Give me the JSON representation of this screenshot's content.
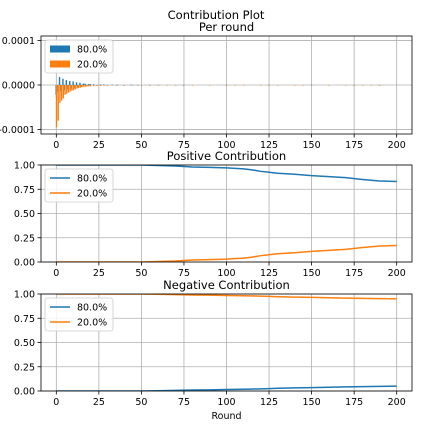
{
  "figure": {
    "suptitle": "Contribution Plot"
  },
  "colors": {
    "series1": "#1f77b4",
    "series2": "#ff7f0e",
    "grid": "#b0b0b0",
    "axes": "#000000"
  },
  "chart_data": [
    {
      "type": "bar",
      "title": "Per round",
      "xlabel": "",
      "ylabel": "",
      "xlim": [
        -9,
        209
      ],
      "ylim": [
        -0.00011,
        0.00011
      ],
      "xticks": [
        0,
        25,
        50,
        75,
        100,
        125,
        150,
        175,
        200
      ],
      "xtick_labels": [
        "0",
        "25",
        "50",
        "75",
        "100",
        "125",
        "150",
        "175",
        "200"
      ],
      "yticks": [
        -0.0001,
        0.0,
        0.0001
      ],
      "ytick_labels": [
        "-0.0001",
        "0.0000",
        "0.0001"
      ],
      "grid": true,
      "legend": "upper left",
      "series": [
        {
          "name": "80.0%",
          "color": "#1f77b4",
          "x": [
            0,
            1,
            2,
            3,
            4,
            5,
            6,
            7,
            8,
            9,
            10,
            11,
            12,
            13,
            14,
            15,
            16,
            17,
            18,
            19,
            20,
            22,
            24,
            26,
            28,
            30,
            33,
            36,
            40,
            44,
            48,
            55,
            60,
            75,
            100,
            125,
            150,
            175,
            190
          ],
          "values": [
            -2.2e-05,
            -1.6e-05,
            1.8e-05,
            -1.4e-05,
            1.4e-05,
            -1.2e-05,
            1.1e-05,
            -1e-05,
            9e-06,
            -8e-06,
            8e-06,
            -7e-06,
            6e-06,
            -5e-06,
            5e-06,
            -4e-06,
            3e-06,
            3e-06,
            -2e-06,
            2e-06,
            2e-06,
            1.5e-06,
            -1.2e-06,
            1e-06,
            1e-06,
            -8e-07,
            8e-07,
            6e-07,
            -5e-07,
            5e-07,
            4e-07,
            3e-07,
            3e-07,
            2e-07,
            2e-07,
            2e-07,
            2e-07,
            2e-07,
            2e-07
          ]
        },
        {
          "name": "20.0%",
          "color": "#ff7f0e",
          "x": [
            0,
            1,
            2,
            3,
            4,
            5,
            6,
            7,
            8,
            9,
            10,
            11,
            12,
            13,
            14,
            15,
            16,
            17,
            18,
            19,
            20,
            22,
            24,
            26,
            28,
            30,
            35,
            40,
            45,
            50,
            55,
            60,
            65,
            70,
            80,
            90,
            100,
            105,
            110,
            120,
            125,
            130,
            140,
            145,
            150,
            160,
            170,
            175,
            180,
            185,
            190
          ],
          "values": [
            -9.5e-05,
            -8e-05,
            -4e-05,
            -3.5e-05,
            -3e-05,
            -2.2e-05,
            -2e-05,
            -1.7e-05,
            -1.5e-05,
            -1.3e-05,
            -1.2e-05,
            -1e-05,
            -8e-06,
            -7e-06,
            -6e-06,
            -5e-06,
            -4e-06,
            -4e-06,
            -3e-06,
            -3e-06,
            -3e-06,
            -2.5e-06,
            -2e-06,
            -2e-06,
            -1.5e-06,
            -1.5e-06,
            -1.2e-06,
            -1e-06,
            -1e-06,
            -8e-07,
            -8e-07,
            -8e-07,
            -6e-07,
            -6e-07,
            -6e-07,
            -6e-07,
            -6e-07,
            -6e-07,
            -6e-07,
            -6e-07,
            -6e-07,
            -6e-07,
            -6e-07,
            -6e-07,
            -6e-07,
            -6e-07,
            -6e-07,
            -6e-07,
            -6e-07,
            -6e-07,
            -6e-07
          ]
        }
      ]
    },
    {
      "type": "line",
      "title": "Positive Contribution",
      "xlabel": "",
      "ylabel": "",
      "xlim": [
        -9,
        209
      ],
      "ylim": [
        0,
        1
      ],
      "xticks": [
        0,
        25,
        50,
        75,
        100,
        125,
        150,
        175,
        200
      ],
      "xtick_labels": [
        "0",
        "25",
        "50",
        "75",
        "100",
        "125",
        "150",
        "175",
        "200"
      ],
      "yticks": [
        0,
        0.25,
        0.5,
        0.75,
        1.0
      ],
      "ytick_labels": [
        "0.00",
        "0.25",
        "0.50",
        "0.75",
        "1.00"
      ],
      "grid": true,
      "legend": "upper left",
      "series": [
        {
          "name": "80.0%",
          "color": "#1f77b4",
          "x": [
            0,
            25,
            50,
            60,
            70,
            80,
            90,
            100,
            105,
            110,
            115,
            120,
            125,
            130,
            140,
            150,
            160,
            170,
            180,
            190,
            200
          ],
          "y": [
            1.0,
            1.0,
            1.0,
            0.995,
            0.99,
            0.98,
            0.975,
            0.97,
            0.965,
            0.96,
            0.95,
            0.935,
            0.925,
            0.915,
            0.905,
            0.89,
            0.88,
            0.87,
            0.85,
            0.835,
            0.83
          ]
        },
        {
          "name": "20.0%",
          "color": "#ff7f0e",
          "x": [
            0,
            25,
            50,
            60,
            70,
            80,
            90,
            100,
            105,
            110,
            115,
            120,
            125,
            130,
            140,
            150,
            160,
            170,
            180,
            190,
            200
          ],
          "y": [
            0.0,
            0.0,
            0.0,
            0.005,
            0.01,
            0.02,
            0.025,
            0.03,
            0.035,
            0.04,
            0.05,
            0.065,
            0.075,
            0.085,
            0.095,
            0.11,
            0.12,
            0.13,
            0.15,
            0.165,
            0.17
          ]
        }
      ]
    },
    {
      "type": "line",
      "title": "Negative Contribution",
      "xlabel": "Round",
      "ylabel": "",
      "xlim": [
        -9,
        209
      ],
      "ylim": [
        0,
        1
      ],
      "xticks": [
        0,
        25,
        50,
        75,
        100,
        125,
        150,
        175,
        200
      ],
      "xtick_labels": [
        "0",
        "25",
        "50",
        "75",
        "100",
        "125",
        "150",
        "175",
        "200"
      ],
      "yticks": [
        0,
        0.25,
        0.5,
        0.75,
        1.0
      ],
      "ytick_labels": [
        "0.00",
        "0.25",
        "0.50",
        "0.75",
        "1.00"
      ],
      "grid": true,
      "legend": "upper left",
      "series": [
        {
          "name": "80.0%",
          "color": "#1f77b4",
          "x": [
            0,
            25,
            50,
            60,
            70,
            80,
            90,
            100,
            110,
            120,
            125,
            130,
            140,
            150,
            160,
            170,
            180,
            190,
            200
          ],
          "y": [
            0.0,
            0.0,
            0.0,
            0.003,
            0.006,
            0.01,
            0.012,
            0.015,
            0.018,
            0.022,
            0.025,
            0.028,
            0.032,
            0.035,
            0.038,
            0.042,
            0.045,
            0.048,
            0.05
          ]
        },
        {
          "name": "20.0%",
          "color": "#ff7f0e",
          "x": [
            0,
            25,
            50,
            60,
            70,
            80,
            90,
            100,
            110,
            120,
            125,
            130,
            140,
            150,
            160,
            170,
            180,
            190,
            200
          ],
          "y": [
            1.0,
            1.0,
            1.0,
            0.997,
            0.994,
            0.99,
            0.988,
            0.985,
            0.982,
            0.978,
            0.975,
            0.972,
            0.968,
            0.965,
            0.962,
            0.958,
            0.955,
            0.952,
            0.95
          ]
        }
      ]
    }
  ]
}
